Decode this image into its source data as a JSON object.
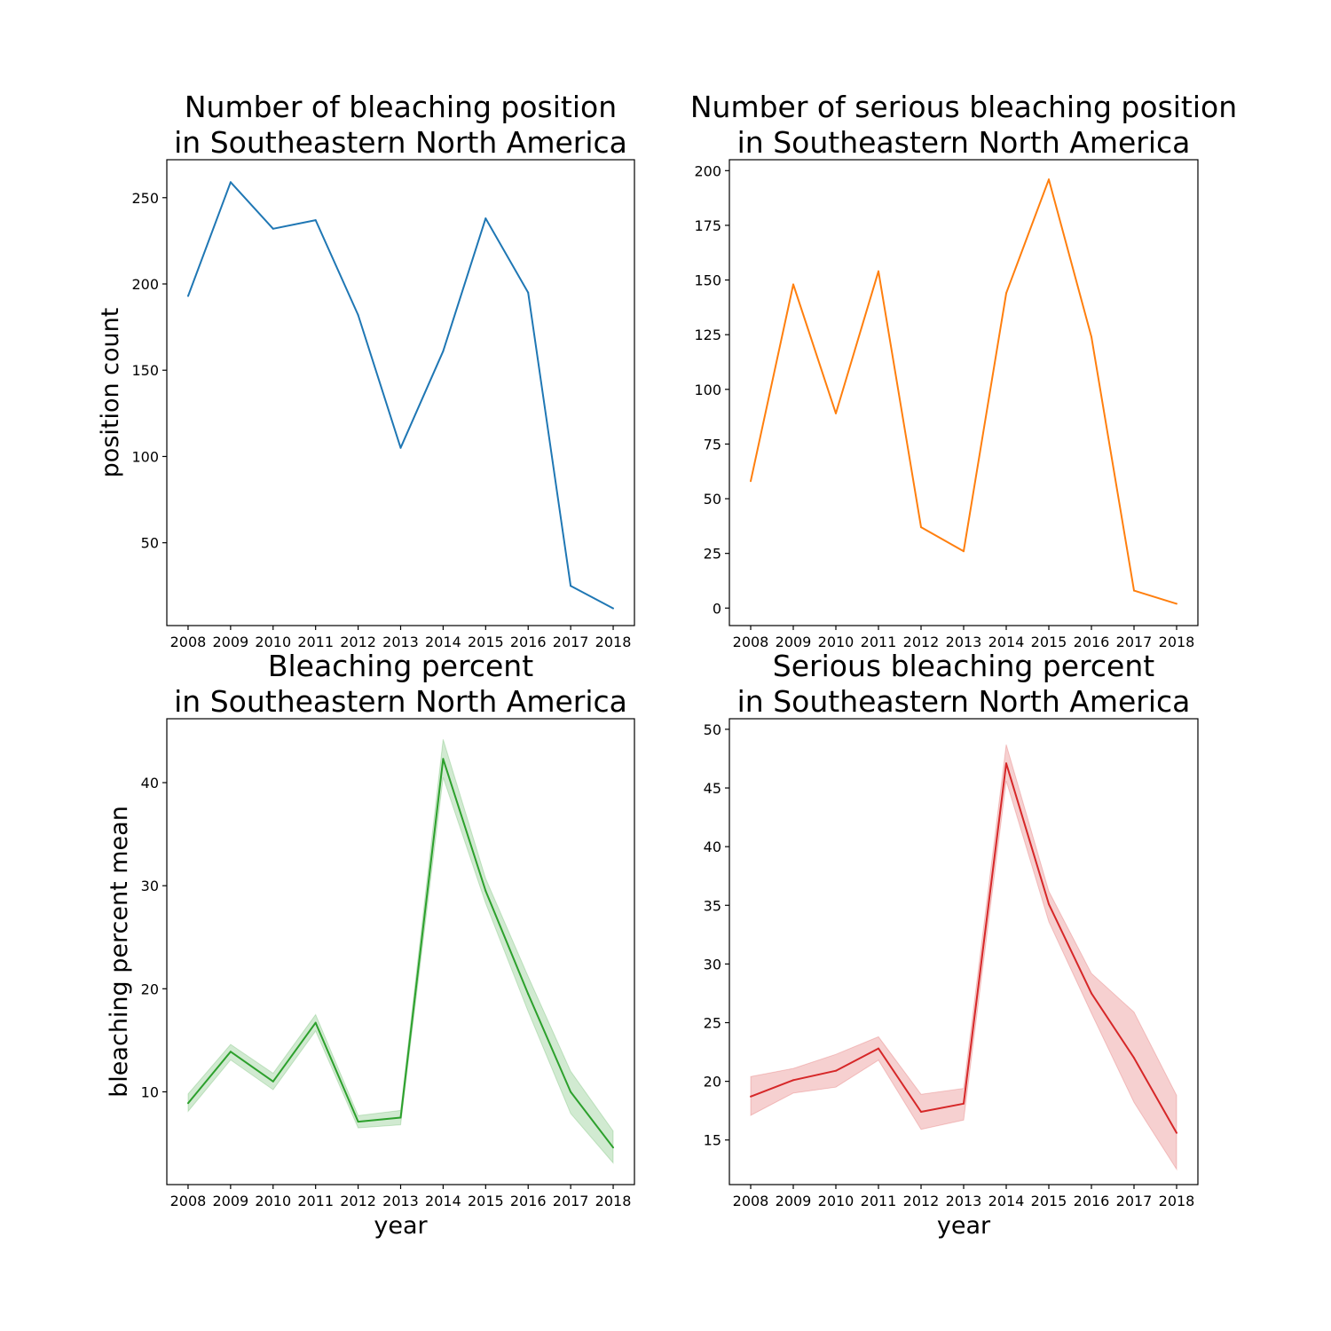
{
  "chart_data": [
    {
      "type": "line",
      "title": [
        "Number of bleaching position",
        "in Southeastern North America"
      ],
      "xlabel": "",
      "ylabel": "position count",
      "x": [
        2008,
        2009,
        2010,
        2011,
        2012,
        2013,
        2014,
        2015,
        2016,
        2017,
        2018
      ],
      "ylim": [
        2,
        272
      ],
      "yticks": [
        50,
        100,
        150,
        200,
        250
      ],
      "color": "#1f77b4",
      "series": [
        {
          "values": [
            193,
            259,
            232,
            237,
            182,
            105,
            161,
            238,
            195,
            25,
            12
          ]
        }
      ]
    },
    {
      "type": "line",
      "title": [
        "Number of serious bleaching position",
        "in Southeastern North America"
      ],
      "xlabel": "",
      "ylabel": "",
      "x": [
        2008,
        2009,
        2010,
        2011,
        2012,
        2013,
        2014,
        2015,
        2016,
        2017,
        2018
      ],
      "ylim": [
        -8,
        205
      ],
      "yticks": [
        0,
        25,
        50,
        75,
        100,
        125,
        150,
        175,
        200
      ],
      "color": "#ff7f0e",
      "series": [
        {
          "values": [
            58,
            148,
            89,
            154,
            37,
            26,
            144,
            196,
            124,
            8,
            2
          ]
        }
      ]
    },
    {
      "type": "area",
      "title": [
        "Bleaching percent",
        "in Southeastern North America"
      ],
      "xlabel": "year",
      "ylabel": "bleaching percent mean",
      "x": [
        2008,
        2009,
        2010,
        2011,
        2012,
        2013,
        2014,
        2015,
        2016,
        2017,
        2018
      ],
      "ylim": [
        1,
        46.2
      ],
      "yticks": [
        10,
        20,
        30,
        40
      ],
      "color": "#2ca02c",
      "series": [
        {
          "values": [
            8.9,
            13.9,
            11.0,
            16.7,
            7.1,
            7.5,
            42.3,
            29.5,
            19.5,
            10.0,
            4.6
          ],
          "lower": [
            8.1,
            13.1,
            10.2,
            15.9,
            6.5,
            6.8,
            40.5,
            28.3,
            17.8,
            7.9,
            3.1
          ],
          "upper": [
            9.8,
            14.6,
            11.8,
            17.5,
            7.7,
            8.2,
            44.2,
            30.7,
            21.2,
            12.0,
            6.2
          ]
        }
      ]
    },
    {
      "type": "area",
      "title": [
        "Serious bleaching percent",
        "in Southeastern North America"
      ],
      "xlabel": "year",
      "ylabel": "",
      "x": [
        2008,
        2009,
        2010,
        2011,
        2012,
        2013,
        2014,
        2015,
        2016,
        2017,
        2018
      ],
      "ylim": [
        11.2,
        50.9
      ],
      "yticks": [
        15,
        20,
        25,
        30,
        35,
        40,
        45,
        50
      ],
      "color": "#d62728",
      "series": [
        {
          "values": [
            18.7,
            20.1,
            20.9,
            22.8,
            17.4,
            18.1,
            47.1,
            35.1,
            27.5,
            22.0,
            15.6
          ],
          "lower": [
            17.1,
            19.0,
            19.5,
            21.8,
            15.9,
            16.7,
            45.6,
            33.6,
            25.8,
            18.2,
            12.5
          ],
          "upper": [
            20.4,
            21.1,
            22.3,
            23.8,
            18.9,
            19.4,
            48.7,
            36.2,
            29.2,
            25.9,
            18.8
          ]
        }
      ]
    }
  ]
}
